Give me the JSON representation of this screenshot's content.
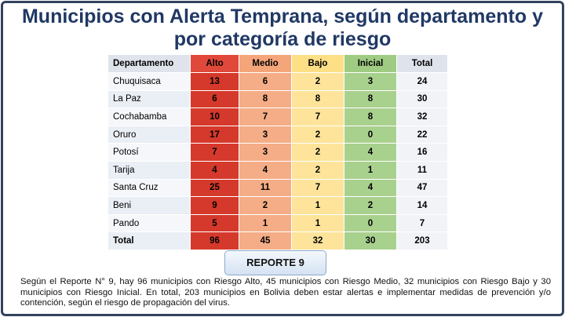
{
  "header": {
    "title": "Municipios con Alerta Temprana, según departamento y por categoría de riesgo"
  },
  "table": {
    "columns": [
      "Departamento",
      "Alto",
      "Medio",
      "Bajo",
      "Inicial",
      "Total"
    ],
    "rows": [
      [
        "Chuquisaca",
        13,
        6,
        2,
        3,
        24
      ],
      [
        "La Paz",
        6,
        8,
        8,
        8,
        30
      ],
      [
        "Cochabamba",
        10,
        7,
        7,
        8,
        32
      ],
      [
        "Oruro",
        17,
        3,
        2,
        0,
        22
      ],
      [
        "Potosí",
        7,
        3,
        2,
        4,
        16
      ],
      [
        "Tarija",
        4,
        4,
        2,
        1,
        11
      ],
      [
        "Santa Cruz",
        25,
        11,
        7,
        4,
        47
      ],
      [
        "Beni",
        9,
        2,
        1,
        2,
        14
      ],
      [
        "Pando",
        5,
        1,
        1,
        0,
        7
      ]
    ],
    "total": [
      "Total",
      96,
      45,
      32,
      30,
      203
    ]
  },
  "button": {
    "label": "REPORTE 9"
  },
  "footer": {
    "text": "Según el Reporte N° 9, hay 96 municipios con Riesgo Alto, 45 municipios con Riesgo Medio, 32 municipios con Riesgo Bajo y 30 municipios con Riesgo Inicial. En total, 203 municipios en Bolivia deben estar alertas e implementar medidas de prevención y/o contención, según el riesgo de propagación del virus."
  }
}
